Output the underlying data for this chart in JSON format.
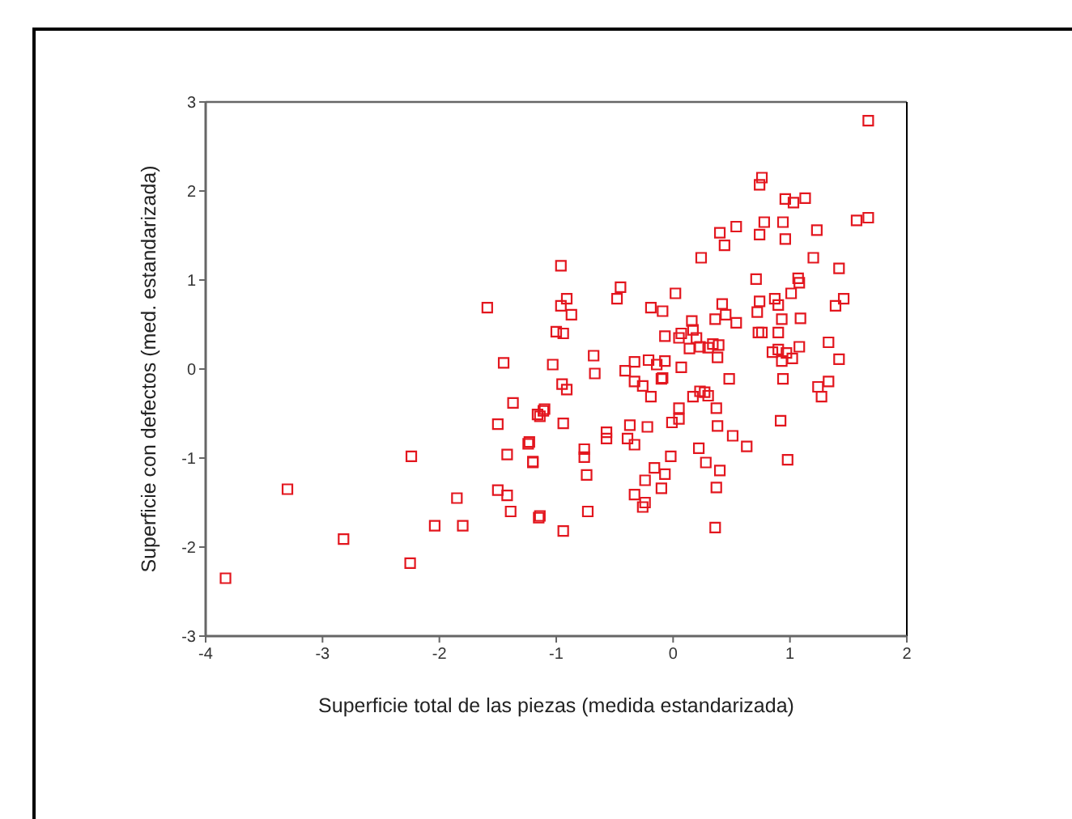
{
  "chart_data": {
    "type": "scatter",
    "xlabel": "Superficie total de las piezas (medida estandarizada)",
    "ylabel": "Superficie con defectos (med. estandarizada)",
    "xlim": [
      -4,
      2
    ],
    "ylim": [
      -3,
      3
    ],
    "xticks": [
      -4,
      -3,
      -2,
      -1,
      0,
      1,
      2
    ],
    "yticks": [
      -3,
      -2,
      -1,
      0,
      1,
      2,
      3
    ],
    "grid": false,
    "marker": "square",
    "series": [
      {
        "color": "#e3161e",
        "x": [
          -3.83,
          -3.3,
          -2.82,
          -2.25,
          -2.24,
          -2.04,
          -1.85,
          -1.8,
          -1.59,
          -1.45,
          -1.5,
          -1.42,
          -1.5,
          -1.42,
          -1.39,
          -1.37,
          -1.24,
          -1.2,
          -1.14,
          -1.1,
          -1.14,
          1.67,
          0.76,
          0.74,
          0.96,
          1.03,
          1.13,
          1.57,
          1.67,
          0.54,
          0.4,
          0.44,
          0.78,
          0.74,
          0.94,
          0.96,
          1.23,
          0.24,
          1.2,
          1.42,
          -0.96,
          0.71,
          1.07,
          1.08,
          -0.45,
          -0.48,
          0.02,
          1.01,
          -0.91,
          -0.96,
          -0.87,
          -0.19,
          -0.09,
          0.42,
          0.74,
          0.87,
          0.9,
          0.72,
          0.36,
          0.45,
          0.54,
          0.16,
          0.93,
          1.09,
          1.46,
          1.39,
          -1.0,
          -0.94,
          -0.07,
          0.05,
          0.17,
          0.07,
          0.2,
          0.14,
          0.23,
          0.3,
          0.34,
          0.39,
          0.73,
          0.76,
          0.9,
          1.33,
          1.08,
          0.85,
          0.9,
          0.93,
          0.97,
          1.02,
          1.42,
          0.38,
          0.07,
          -0.21,
          -0.14,
          -0.07,
          -0.33,
          -0.41,
          -0.68,
          -0.67,
          -1.03,
          -0.09,
          0.48,
          0.94,
          1.33,
          1.24,
          -0.95,
          -0.91,
          -0.33,
          -0.26,
          -0.1,
          -0.19,
          0.17,
          0.23,
          0.27,
          0.3,
          0.37,
          0.05,
          0.05,
          -0.01,
          1.27,
          -1.16,
          -1.11,
          -0.94,
          -1.23,
          -1.2,
          -0.76,
          -0.76,
          -0.74,
          -0.57,
          -0.57,
          -0.37,
          -0.22,
          -0.39,
          -0.33,
          -0.02,
          0.22,
          0.28,
          0.38,
          0.51,
          0.63,
          0.4,
          0.37,
          0.36,
          0.92,
          0.98,
          -0.16,
          -0.07,
          -0.24,
          -0.1,
          -0.33,
          -0.24,
          -0.26,
          -0.73,
          -1.15,
          -0.94
        ],
        "values": [
          -2.35,
          -1.35,
          -1.91,
          -2.18,
          -0.98,
          -1.76,
          -1.45,
          -1.76,
          0.69,
          0.07,
          -0.62,
          -0.96,
          -1.36,
          -1.42,
          -1.6,
          -0.38,
          -0.84,
          -1.04,
          -0.53,
          -0.45,
          -1.65,
          2.79,
          2.15,
          2.07,
          1.91,
          1.87,
          1.92,
          1.67,
          1.7,
          1.6,
          1.53,
          1.39,
          1.65,
          1.51,
          1.65,
          1.46,
          1.56,
          1.25,
          1.25,
          1.13,
          1.16,
          1.01,
          1.02,
          0.97,
          0.92,
          0.79,
          0.85,
          0.85,
          0.79,
          0.71,
          0.61,
          0.69,
          0.65,
          0.73,
          0.76,
          0.79,
          0.72,
          0.64,
          0.56,
          0.61,
          0.52,
          0.54,
          0.56,
          0.57,
          0.79,
          0.71,
          0.42,
          0.4,
          0.37,
          0.35,
          0.44,
          0.4,
          0.35,
          0.23,
          0.25,
          0.24,
          0.28,
          0.27,
          0.41,
          0.41,
          0.41,
          0.3,
          0.25,
          0.19,
          0.22,
          0.09,
          0.18,
          0.12,
          0.11,
          0.13,
          0.02,
          0.1,
          0.05,
          0.09,
          0.08,
          -0.02,
          0.15,
          -0.05,
          0.05,
          -0.1,
          -0.11,
          -0.11,
          -0.14,
          -0.2,
          -0.17,
          -0.23,
          -0.14,
          -0.19,
          -0.11,
          -0.31,
          -0.31,
          -0.25,
          -0.26,
          -0.3,
          -0.44,
          -0.44,
          -0.56,
          -0.6,
          -0.31,
          -0.51,
          -0.47,
          -0.61,
          -0.82,
          -1.05,
          -0.9,
          -0.99,
          -1.19,
          -0.71,
          -0.78,
          -0.63,
          -0.65,
          -0.78,
          -0.85,
          -0.98,
          -0.89,
          -1.05,
          -0.64,
          -0.75,
          -0.87,
          -1.14,
          -1.33,
          -1.78,
          -0.58,
          -1.02,
          -1.11,
          -1.18,
          -1.25,
          -1.34,
          -1.41,
          -1.5,
          -1.55,
          -1.6,
          -1.67,
          -1.82
        ]
      }
    ]
  }
}
